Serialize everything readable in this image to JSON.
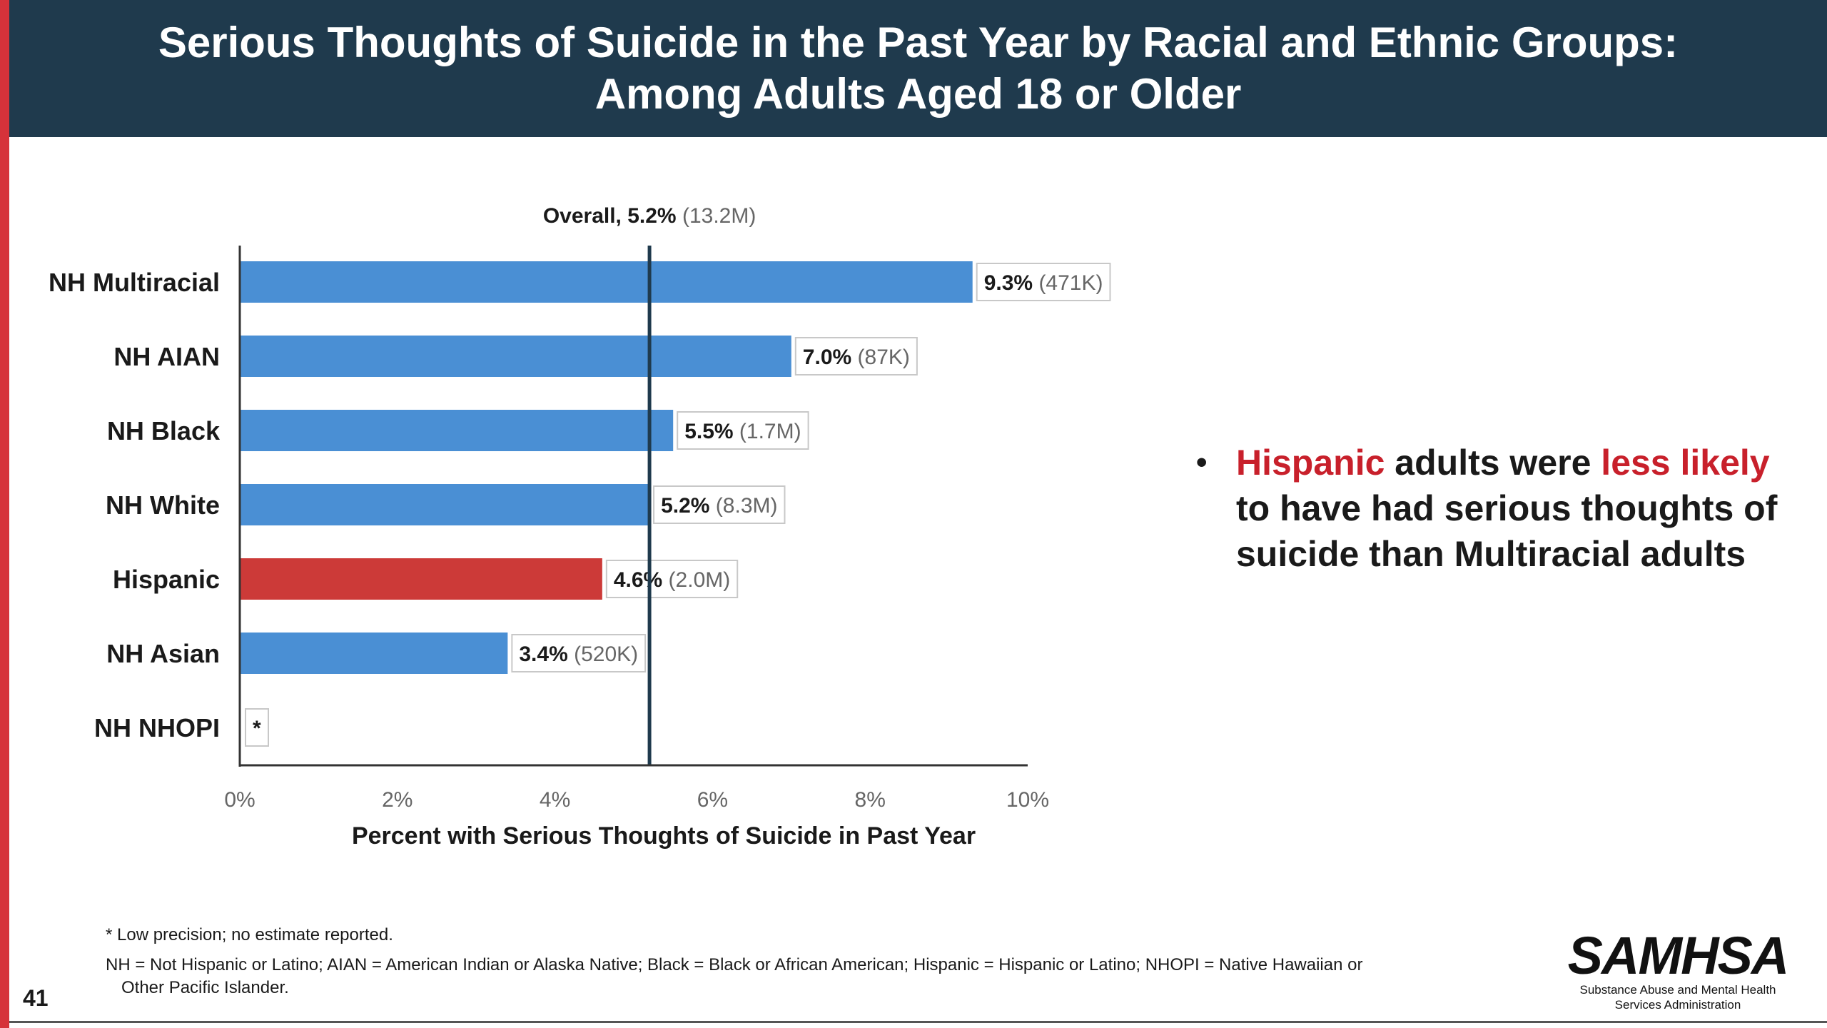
{
  "slide": {
    "title_line1": "Serious Thoughts of Suicide in the Past Year by Racial and Ethnic Groups:",
    "title_line2": "Among Adults Aged 18 or Older",
    "page_number": "41",
    "bullet": {
      "hl1": "Hispanic",
      "t1": " adults were ",
      "hl2": "less likely",
      "t2": " to have had serious thoughts of suicide than Multiracial adults"
    },
    "footnote_star": "* Low precision; no estimate reported.",
    "footnote_abbrev_line1": "NH = Not Hispanic or Latino; AIAN = American Indian or Alaska Native; Black = Black or African American; Hispanic = Hispanic or Latino; NHOPI = Native Hawaiian or",
    "footnote_abbrev_line2": "Other Pacific Islander.",
    "logo_word": "SAMHSA",
    "logo_tag_line1": "Substance Abuse and Mental Health",
    "logo_tag_line2": "Services Administration",
    "colors": {
      "header_bg": "#1f3a4d",
      "accent_red": "#d6323a",
      "bar_blue": "#4a8fd4",
      "bar_highlight": "#cc3a38"
    }
  },
  "chart_data": {
    "type": "bar",
    "orientation": "horizontal",
    "categories": [
      "NH Multiracial",
      "NH AIAN",
      "NH Black",
      "NH White",
      "Hispanic",
      "NH Asian",
      "NH NHOPI"
    ],
    "values": [
      9.3,
      7.0,
      5.5,
      5.2,
      4.6,
      3.4,
      null
    ],
    "value_labels": [
      "9.3%",
      "7.0%",
      "5.5%",
      "5.2%",
      "4.6%",
      "3.4%",
      "*"
    ],
    "count_labels": [
      "(471K)",
      "(87K)",
      "(1.7M)",
      "(8.3M)",
      "(2.0M)",
      "(520K)",
      ""
    ],
    "highlight": "Hispanic",
    "xlabel": "Percent with Serious Thoughts of Suicide in Past Year",
    "xlim": [
      0,
      10
    ],
    "xticks": [
      0,
      2,
      4,
      6,
      8,
      10
    ],
    "xtick_labels": [
      "0%",
      "2%",
      "4%",
      "6%",
      "8%",
      "10%"
    ],
    "reference_line": {
      "value": 5.2,
      "label": "Overall, 5.2%",
      "count": "(13.2M)"
    }
  }
}
